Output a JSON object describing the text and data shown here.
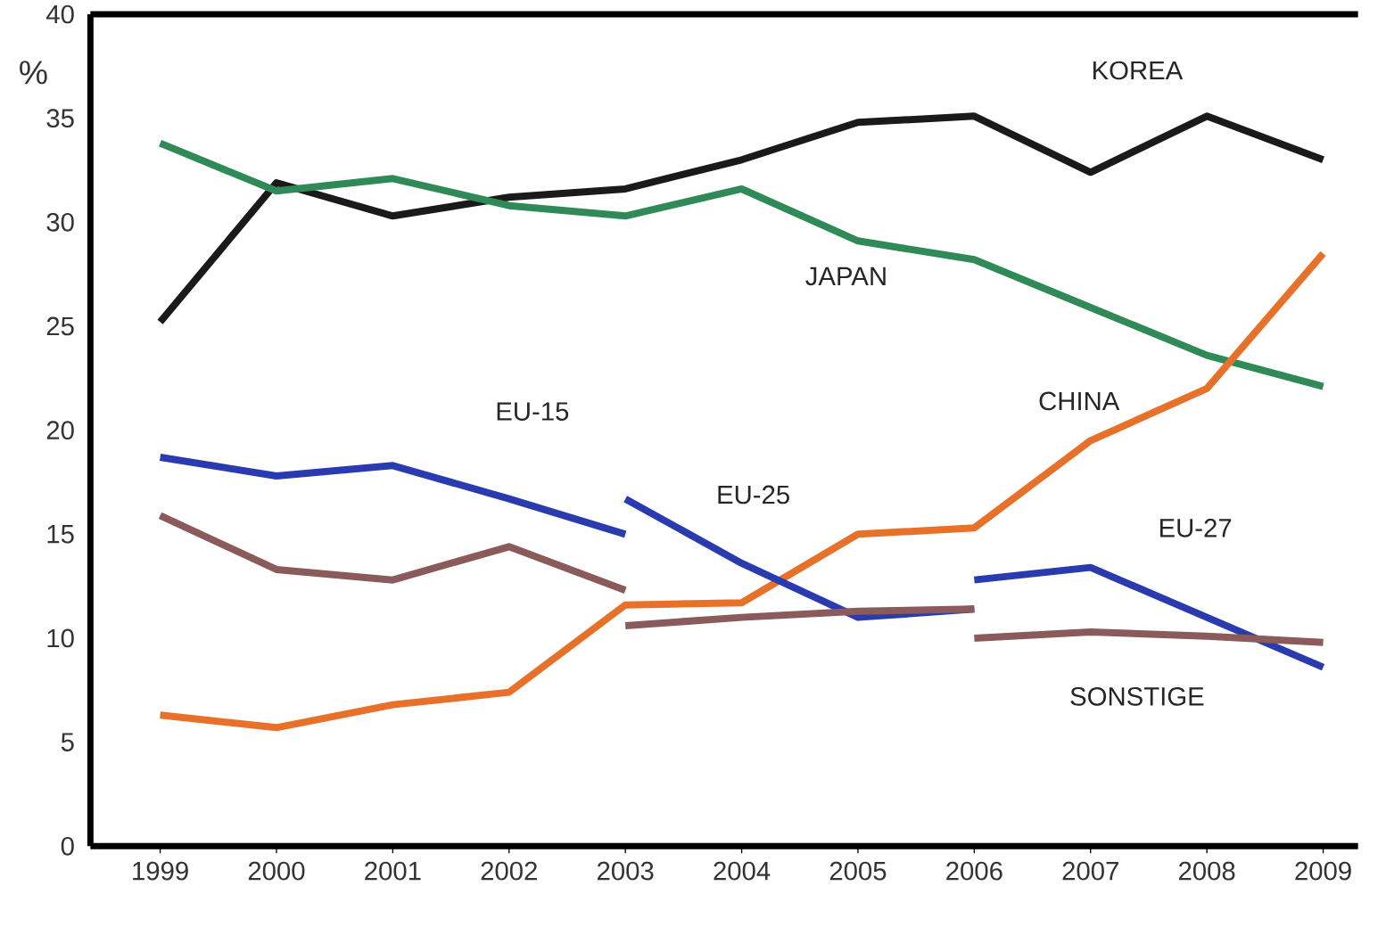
{
  "chart_data": {
    "type": "line",
    "ylabel": "%",
    "xlim": [
      1998.4,
      2009.3
    ],
    "xticks": [
      1999,
      2000,
      2001,
      2002,
      2003,
      2004,
      2005,
      2006,
      2007,
      2008,
      2009
    ],
    "ylim": [
      0,
      40
    ],
    "yticks": [
      0,
      5,
      10,
      15,
      20,
      25,
      30,
      35,
      40
    ],
    "series": [
      {
        "name": "KOREA",
        "color": "#1a1a1a",
        "x": [
          1999,
          2000,
          2001,
          2002,
          2003,
          2004,
          2005,
          2006,
          2007,
          2008,
          2009
        ],
        "values": [
          25.2,
          31.9,
          30.3,
          31.2,
          31.6,
          33.0,
          34.8,
          35.1,
          32.4,
          35.1,
          33.0
        ]
      },
      {
        "name": "JAPAN",
        "color": "#2f8a57",
        "x": [
          1999,
          2000,
          2001,
          2002,
          2003,
          2004,
          2005,
          2006,
          2007,
          2008,
          2009
        ],
        "values": [
          33.8,
          31.5,
          32.1,
          30.8,
          30.3,
          31.6,
          29.1,
          28.2,
          25.9,
          23.6,
          22.1
        ]
      },
      {
        "name": "CHINA",
        "color": "#e8712a",
        "x": [
          1999,
          2000,
          2001,
          2002,
          2003,
          2004,
          2005,
          2006,
          2007,
          2008,
          2009
        ],
        "values": [
          6.3,
          5.7,
          6.8,
          7.4,
          11.6,
          11.7,
          15.0,
          15.3,
          19.5,
          22.0,
          28.5
        ]
      },
      {
        "name": "EU-15",
        "color": "#2a3bb0",
        "x": [
          1999,
          2000,
          2001,
          2002,
          2003
        ],
        "values": [
          18.7,
          17.8,
          18.3,
          16.7,
          15.0
        ]
      },
      {
        "name": "EU-25",
        "color": "#2a3bb0",
        "x": [
          2003,
          2004,
          2005,
          2006
        ],
        "values": [
          16.7,
          13.6,
          11.0,
          11.4
        ]
      },
      {
        "name": "EU-27",
        "color": "#2a3bb0",
        "x": [
          2006,
          2007,
          2008,
          2009
        ],
        "values": [
          12.8,
          13.4,
          11.0,
          8.6
        ]
      },
      {
        "color": "#8b5a5a",
        "x": [
          1999,
          2000,
          2001,
          2002,
          2003
        ],
        "values": [
          15.9,
          13.3,
          12.8,
          14.4,
          12.3
        ]
      },
      {
        "color": "#8b5a5a",
        "x": [
          2003,
          2004,
          2005,
          2006
        ],
        "values": [
          10.6,
          11.0,
          11.3,
          11.4
        ]
      },
      {
        "name": "SONSTIGE",
        "color": "#8b5a5a",
        "x": [
          2006,
          2007,
          2008,
          2009
        ],
        "values": [
          10.0,
          10.3,
          10.1,
          9.8
        ]
      }
    ]
  }
}
